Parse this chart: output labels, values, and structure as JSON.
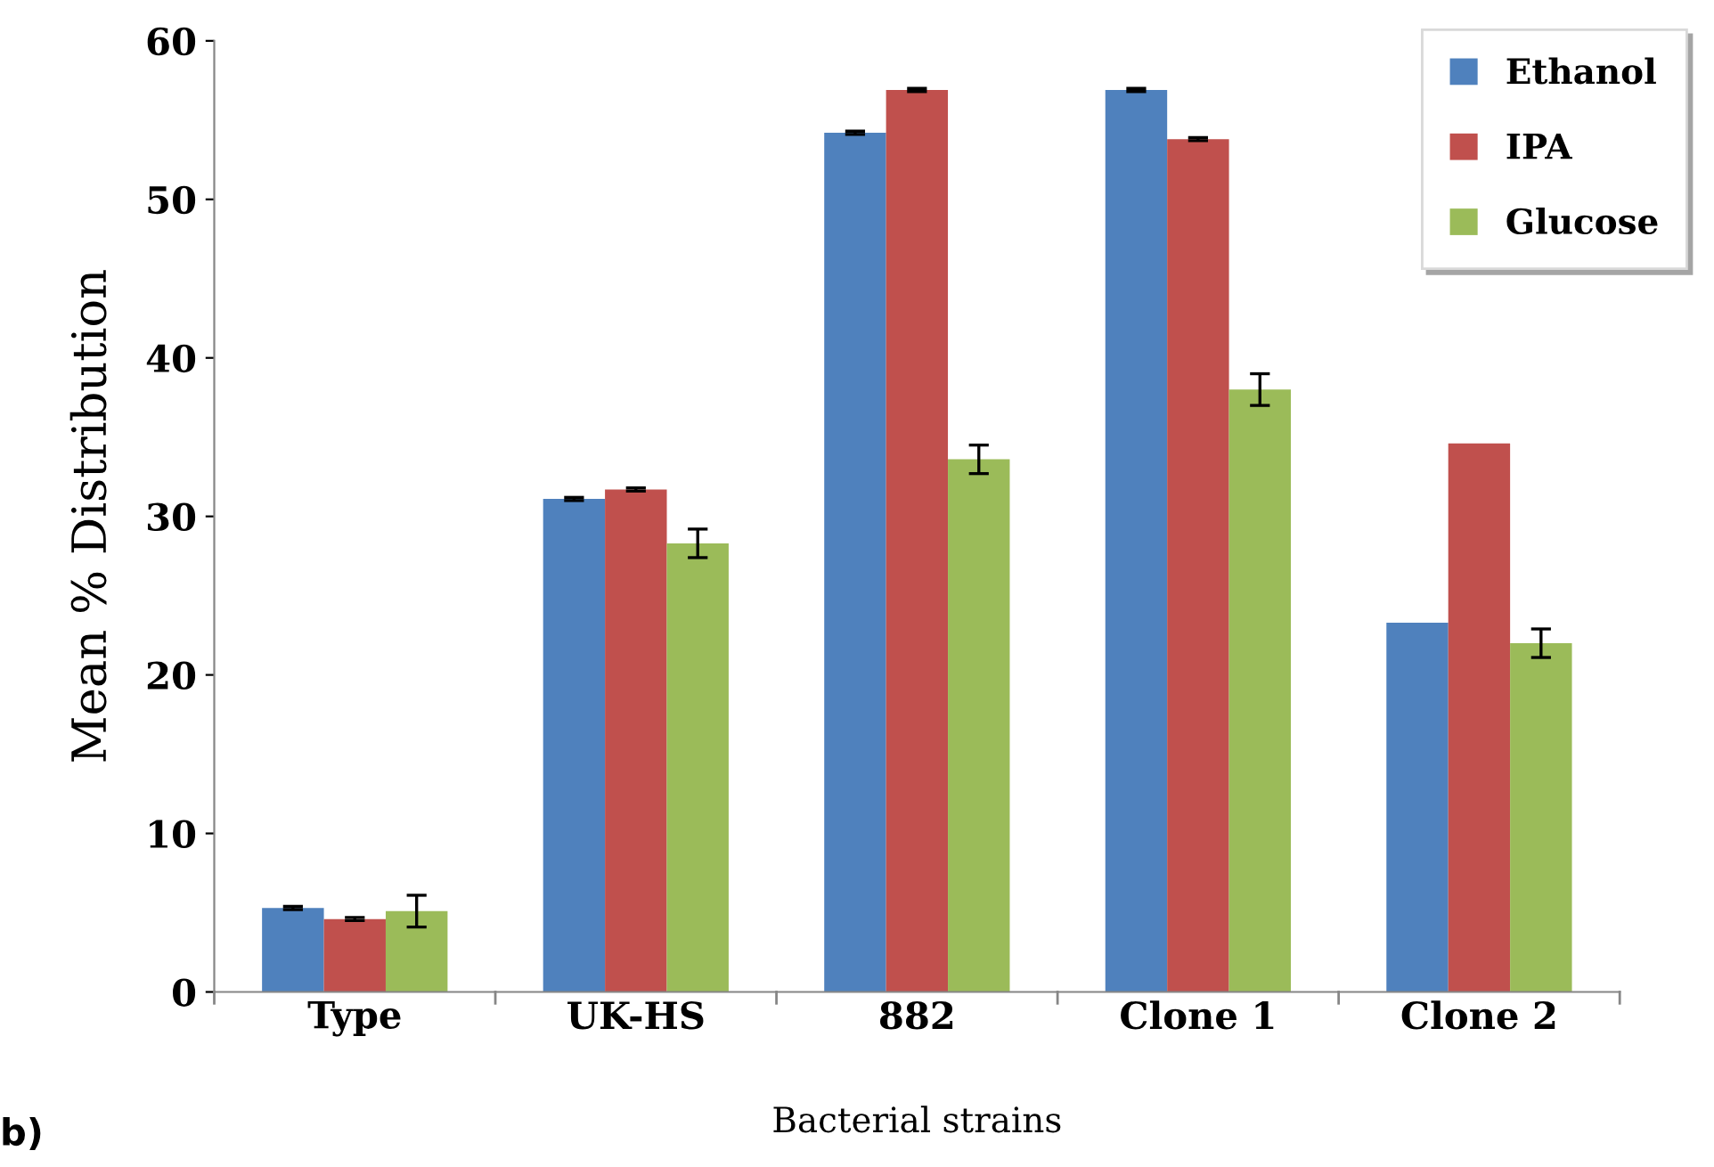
{
  "chart_data": {
    "type": "bar",
    "xlabel": "Bacterial strains",
    "ylabel": "Mean % Distribution",
    "categories": [
      "Type",
      "UK-HS",
      "882",
      "Clone 1",
      "Clone 2"
    ],
    "series": [
      {
        "name": "Ethanol",
        "color": "#4f81bd",
        "values": [
          5.3,
          31.1,
          54.2,
          56.9,
          23.3
        ],
        "errors": [
          0.1,
          0.1,
          0.1,
          0.1,
          null
        ]
      },
      {
        "name": "IPA",
        "color": "#c0504d",
        "values": [
          4.6,
          31.7,
          56.9,
          53.8,
          34.6
        ],
        "errors": [
          0.1,
          0.1,
          0.1,
          0.1,
          null
        ]
      },
      {
        "name": "Glucose",
        "color": "#9bbb59",
        "values": [
          5.1,
          28.3,
          33.6,
          38.0,
          22.0
        ],
        "errors": [
          1.0,
          0.9,
          0.9,
          1.0,
          0.9
        ]
      }
    ],
    "ylim": [
      0,
      60
    ],
    "yticks": [
      0,
      10,
      20,
      30,
      40,
      50,
      60
    ],
    "grid": false,
    "legend": "top right",
    "annotations": [
      "b)"
    ]
  }
}
